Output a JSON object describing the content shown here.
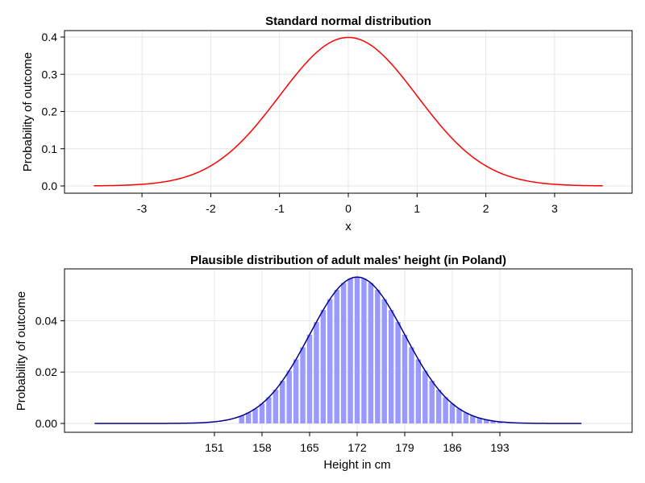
{
  "chart_data": [
    {
      "type": "line",
      "title": "Standard normal distribution",
      "xlabel": "x",
      "ylabel": "Probability of outcome",
      "xlim": [
        -3.7,
        3.7
      ],
      "ylim": [
        0.0,
        0.4
      ],
      "xticks": [
        -3,
        -2,
        -1,
        0,
        1,
        2,
        3
      ],
      "yticks": [
        "0.0",
        "0.1",
        "0.2",
        "0.3",
        "0.4"
      ],
      "grid": true,
      "series": [
        {
          "color": "#ff0000",
          "distribution": "normal",
          "mean": 0,
          "sd": 1,
          "x_range": [
            -3.7,
            3.7
          ]
        }
      ]
    },
    {
      "type": "bar",
      "title": "Plausible distribution of adult males' height (in Poland)",
      "xlabel": "Height in cm",
      "ylabel": "Probability of outcome",
      "xlim": [
        150,
        200
      ],
      "ylim": [
        0.0,
        0.056
      ],
      "xticks": [
        151,
        158,
        165,
        172,
        179,
        186,
        193
      ],
      "yticks": [
        "0.00",
        "0.02",
        "0.04"
      ],
      "grid": true,
      "bar_color": "#9999ff",
      "line_color": "#00008b",
      "distribution": "normal",
      "mean": 172,
      "sd": 7,
      "x_range": [
        130,
        205
      ],
      "bar_range": [
        155,
        193
      ]
    }
  ]
}
